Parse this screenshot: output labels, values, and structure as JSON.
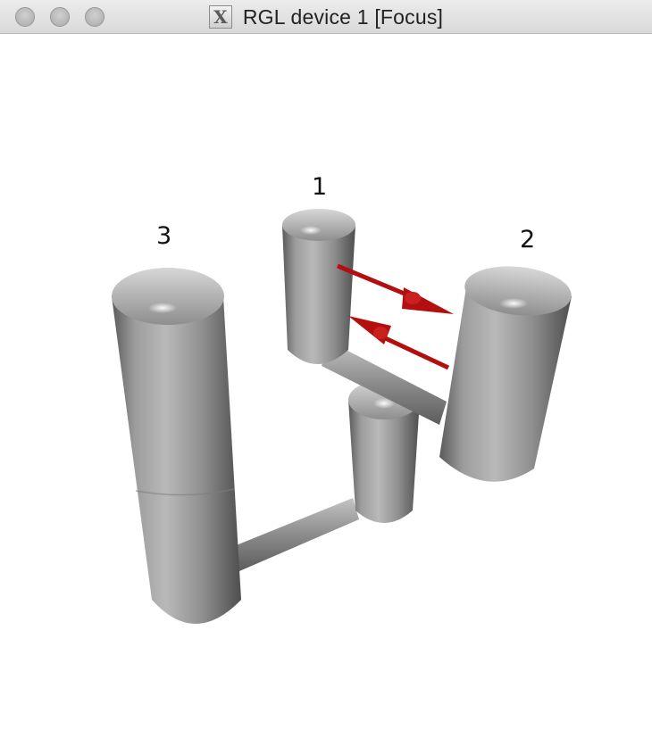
{
  "window": {
    "title": "RGL device 1 [Focus]",
    "app_icon": "x11-icon",
    "controls": [
      "close-button",
      "minimize-button",
      "zoom-button"
    ]
  },
  "scene": {
    "labels": [
      "1",
      "2",
      "3"
    ],
    "colors": {
      "cylinder": "#9a9a9a",
      "arrow": "#b40f0f"
    }
  }
}
